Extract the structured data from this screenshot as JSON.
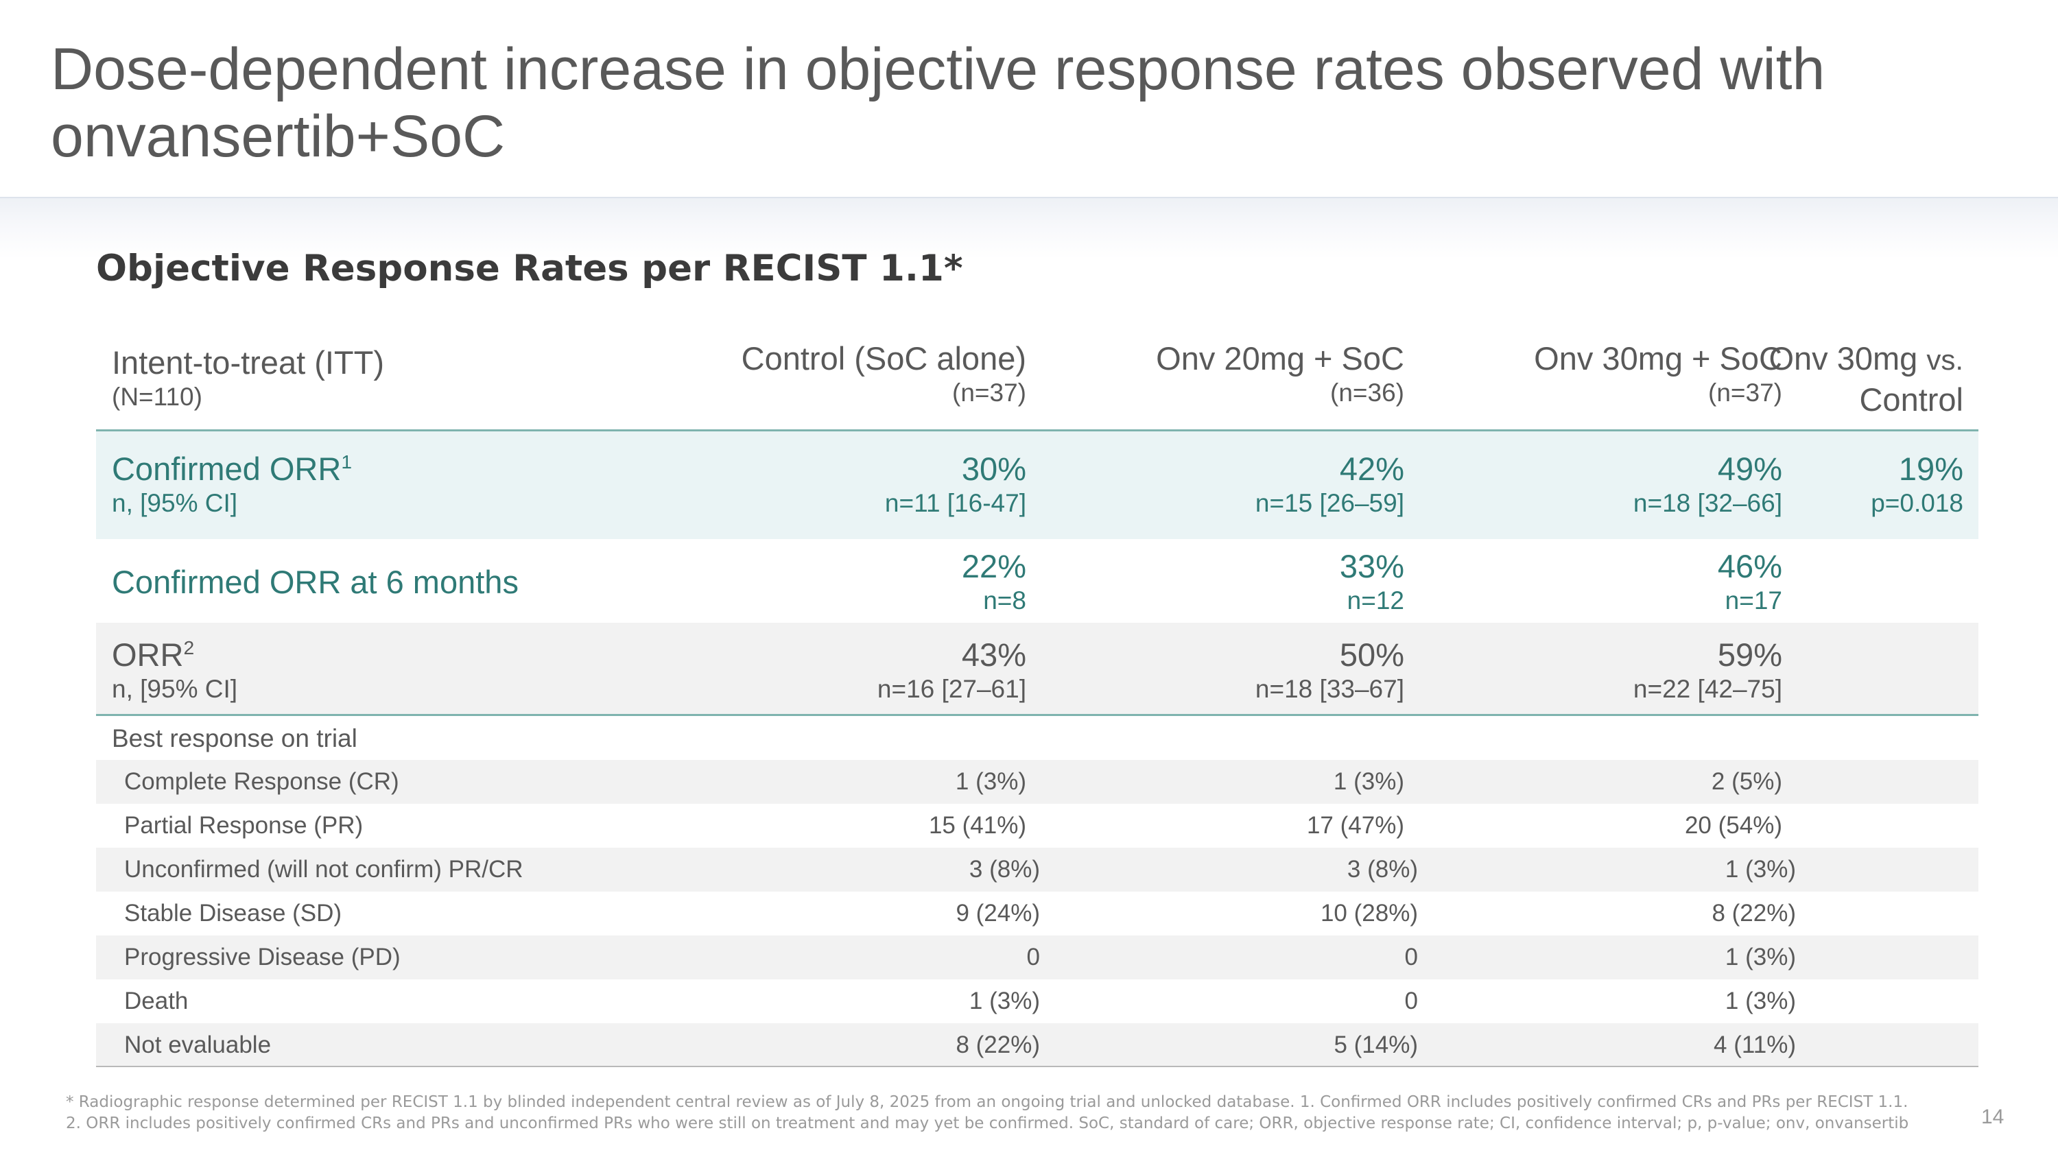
{
  "slide": {
    "title": "Dose-dependent increase in objective response rates observed with onvansertib+SoC",
    "section_heading": "Objective Response Rates per RECIST 1.1*",
    "page_number": "14",
    "footnote": "* Radiographic response determined per RECIST 1.1 by blinded independent central review as of July 8, 2025 from an ongoing trial and unlocked database. 1. Confirmed ORR includes positively confirmed CRs and PRs per RECIST 1.1. 2. ORR includes positively confirmed CRs and PRs and unconfirmed PRs who were still on treatment and may yet be confirmed. SoC, standard of care; ORR, objective response rate; CI, confidence interval; p, p-value; onv, onvansertib"
  },
  "table": {
    "header": {
      "itt_label": "Intent-to-treat (ITT)",
      "itt_n": "(N=110)",
      "control_label": "Control (SoC alone)",
      "control_n": "(n=37)",
      "onv20_label": "Onv 20mg + SoC",
      "onv20_n": "(n=36)",
      "onv30_label": "Onv 30mg + SoC",
      "onv30_n": "(n=37)",
      "vs_label_a": "Onv 30mg",
      "vs_label_b": "vs.",
      "vs_label_c": "Control"
    },
    "confirmed_orr": {
      "label": "Confirmed ORR",
      "sup": "1",
      "sublabel": "n, [95% CI]",
      "control": "30%",
      "control_sub": "n=11 [16-47]",
      "onv20": "42%",
      "onv20_sub": "n=15 [26–59]",
      "onv30": "49%",
      "onv30_sub": "n=18 [32–66]",
      "vs": "19%",
      "vs_sub": "p=0.018"
    },
    "confirmed_orr_6m": {
      "label": "Confirmed ORR at 6 months",
      "control": "22%",
      "control_sub": "n=8",
      "onv20": "33%",
      "onv20_sub": "n=12",
      "onv30": "46%",
      "onv30_sub": "n=17"
    },
    "orr": {
      "label": "ORR",
      "sup": "2",
      "sublabel": "n, [95% CI]",
      "control": "43%",
      "control_sub": "n=16 [27–61]",
      "onv20": "50%",
      "onv20_sub": "n=18 [33–67]",
      "onv30": "59%",
      "onv30_sub": "n=22 [42–75]"
    },
    "best_response_label": "Best response on trial",
    "best_response": [
      {
        "label": "Complete Response (CR)",
        "control": "1 (3%)",
        "onv20": "1 (3%)",
        "onv30": "2 (5%)"
      },
      {
        "label": "Partial Response (PR)",
        "control": "15 (41%)",
        "onv20": "17 (47%)",
        "onv30": "20 (54%)"
      },
      {
        "label": "Unconfirmed (will not confirm) PR/CR",
        "control": "3 (8%)",
        "onv20": "3 (8%)",
        "onv30": "1 (3%)"
      },
      {
        "label": "Stable Disease (SD)",
        "control": "9 (24%)",
        "onv20": "10 (28%)",
        "onv30": "8 (22%)"
      },
      {
        "label": "Progressive Disease (PD)",
        "control": "0",
        "onv20": "0",
        "onv30": "1 (3%)"
      },
      {
        "label": "Death",
        "control": "1 (3%)",
        "onv20": "0",
        "onv30": "1 (3%)"
      },
      {
        "label": "Not evaluable",
        "control": "8 (22%)",
        "onv20": "5 (14%)",
        "onv30": "4 (11%)"
      }
    ]
  }
}
